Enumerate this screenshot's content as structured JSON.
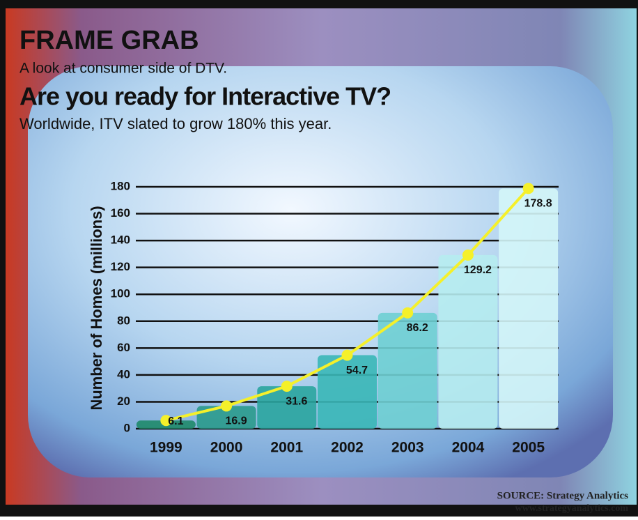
{
  "chart_data": {
    "type": "bar",
    "header": "FRAME GRAB",
    "subheader": "A look at consumer side of DTV.",
    "title": "Are you ready for Interactive TV?",
    "subtitle": "Worldwide, ITV slated to grow 180% this year.",
    "y_label": "Number of Homes (millions)",
    "categories": [
      "1999",
      "2000",
      "2001",
      "2002",
      "2003",
      "2004",
      "2005"
    ],
    "values": [
      6.1,
      16.9,
      31.6,
      54.7,
      86.2,
      129.2,
      178.8
    ],
    "colors": [
      "#1f8a6a",
      "#2a9a8c",
      "#2aa59e",
      "#3ab7b7",
      "#6fcfd3",
      "#b6ecef",
      "#d4f6f8"
    ],
    "line_color": "#f5f02a",
    "ylim": [
      0,
      180
    ],
    "yticks": [
      0,
      20,
      40,
      60,
      80,
      100,
      120,
      140,
      160,
      180
    ],
    "grid": true,
    "source": "SOURCE: Strategy Analytics",
    "source_url": "www.strategyanalytics.com"
  }
}
